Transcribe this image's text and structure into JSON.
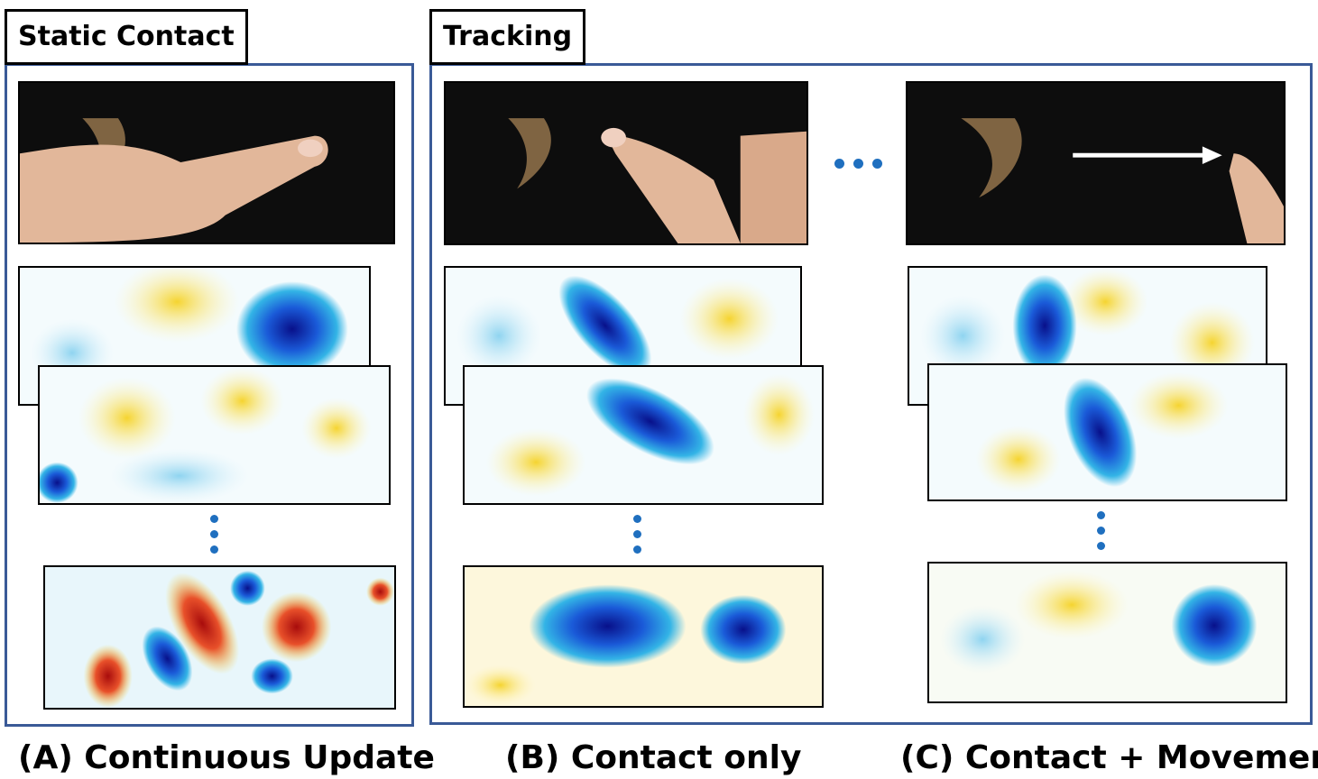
{
  "panels": {
    "static": {
      "tag": "Static Contact"
    },
    "tracking": {
      "tag": "Tracking"
    }
  },
  "captions": {
    "a": "(A) Continuous Update",
    "b": "(B) Contact only",
    "c": "(C) Contact + Movement"
  },
  "colors": {
    "frame": "#3a5a97",
    "dots": "#1f6fbf",
    "map_low": "#08108a",
    "map_mid_low": "#33b4e6",
    "map_neutral": "#ffffff",
    "map_mid_high": "#f5d430",
    "map_high": "#b01010"
  },
  "icons": {
    "ellipsis": "ellipsis-icon",
    "arrow": "right-arrow-icon"
  }
}
